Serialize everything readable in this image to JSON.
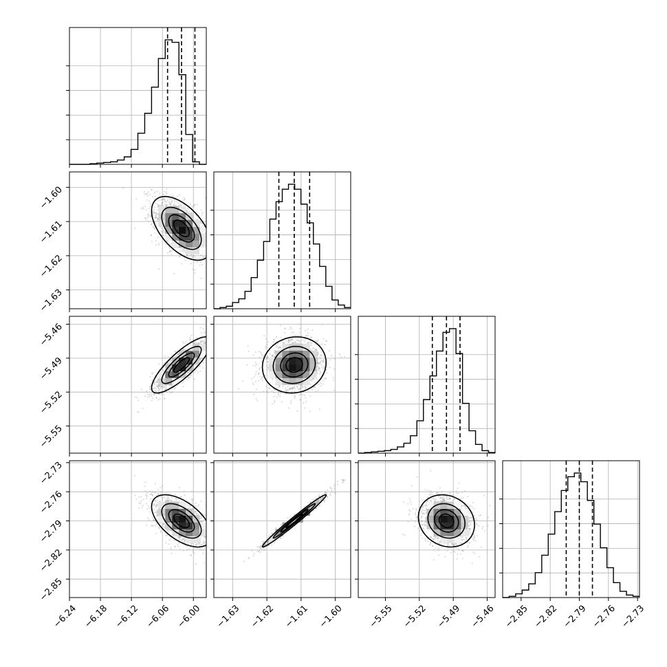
{
  "chart_data": {
    "type": "corner",
    "grid": true,
    "parameters": [
      {
        "index": 0,
        "center": -6.023,
        "std": 0.028,
        "range": [
          -6.24,
          -5.975
        ],
        "ticks": [
          -6.24,
          -6.18,
          -6.12,
          -6.06,
          -6.0
        ],
        "tick_labels": [
          "−6.24",
          "−6.18",
          "−6.12",
          "−6.06",
          "−6.00"
        ],
        "quantiles": [
          -6.05,
          -6.023,
          -5.997
        ]
      },
      {
        "index": 1,
        "center": -1.612,
        "std": 0.0045,
        "range": [
          -1.6355,
          -1.5955
        ],
        "ticks": [
          -1.63,
          -1.62,
          -1.61,
          -1.6
        ],
        "tick_labels": [
          "−1.63",
          "−1.62",
          "−1.61",
          "−1.60"
        ],
        "quantiles": [
          -1.6165,
          -1.612,
          -1.6075
        ]
      },
      {
        "index": 2,
        "center": -5.496,
        "std": 0.012,
        "range": [
          -5.574,
          -5.453
        ],
        "ticks": [
          -5.55,
          -5.52,
          -5.49,
          -5.46
        ],
        "tick_labels": [
          "−5.55",
          "−5.52",
          "−5.49",
          "−5.46"
        ],
        "quantiles": [
          -5.5085,
          -5.496,
          -5.484
        ]
      },
      {
        "index": 3,
        "center": -2.79,
        "std": 0.013,
        "range": [
          -2.869,
          -2.728
        ],
        "ticks": [
          -2.85,
          -2.82,
          -2.79,
          -2.76,
          -2.73
        ],
        "tick_labels": [
          "−2.85",
          "−2.82",
          "−2.79",
          "−2.76",
          "−2.73"
        ],
        "quantiles": [
          -2.8035,
          -2.79,
          -2.7765
        ]
      }
    ],
    "histograms_1d": [
      {
        "param": 0,
        "counts": [
          0,
          0,
          0,
          0.5,
          1,
          1.5,
          2,
          3.5,
          6,
          12,
          25,
          41,
          62,
          85,
          100,
          98,
          72,
          24,
          2,
          0
        ]
      },
      {
        "param": 1,
        "counts": [
          0,
          1,
          2,
          5,
          8,
          14,
          25,
          39,
          54,
          72,
          86,
          96,
          100,
          96,
          84,
          69,
          52,
          34,
          18,
          7,
          3,
          1
        ]
      },
      {
        "param": 2,
        "counts": [
          0,
          0.5,
          1,
          1.5,
          2,
          3,
          5,
          8,
          14,
          26,
          43,
          62,
          82,
          97,
          100,
          80,
          40,
          18,
          7,
          2,
          0.5
        ]
      },
      {
        "param": 3,
        "counts": [
          0,
          1,
          3,
          6,
          11,
          20,
          34,
          51,
          69,
          86,
          97,
          100,
          93,
          78,
          59,
          40,
          24,
          12,
          5,
          2,
          1
        ]
      }
    ],
    "pairs_2d": [
      {
        "x_param": 0,
        "y_param": 1,
        "correlation": -0.55
      },
      {
        "x_param": 0,
        "y_param": 2,
        "correlation": 0.82
      },
      {
        "x_param": 1,
        "y_param": 2,
        "correlation": 0.08
      },
      {
        "x_param": 0,
        "y_param": 3,
        "correlation": -0.55
      },
      {
        "x_param": 1,
        "y_param": 3,
        "correlation": 0.985
      },
      {
        "x_param": 2,
        "y_param": 3,
        "correlation": -0.15
      }
    ],
    "contour_levels_sigma": [
      0.5,
      1.0,
      1.5,
      2.0
    ],
    "colors": {
      "line": "#000000",
      "grid": "#b0b0b0",
      "points": "#9e9e9e"
    }
  }
}
